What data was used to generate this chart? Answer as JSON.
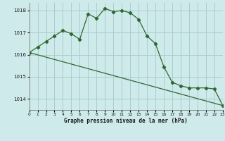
{
  "title": "Graphe pression niveau de la mer (hPa)",
  "bg_color": "#ceeaea",
  "grid_color": "#a8cece",
  "line_color": "#2d6a2d",
  "series1_x": [
    0,
    1,
    2,
    3,
    4,
    5,
    6,
    7,
    8,
    9,
    10,
    11,
    12,
    13,
    14,
    15,
    16,
    17,
    18,
    19,
    20,
    21,
    22,
    23
  ],
  "series1_y": [
    1016.1,
    1016.35,
    1016.6,
    1016.85,
    1017.1,
    1016.95,
    1016.7,
    1017.85,
    1017.65,
    1018.1,
    1017.95,
    1018.0,
    1017.9,
    1017.6,
    1016.85,
    1016.5,
    1015.45,
    1014.75,
    1014.6,
    1014.5,
    1014.5,
    1014.5,
    1014.45,
    1013.7
  ],
  "series2_x": [
    0,
    23
  ],
  "series2_y": [
    1016.1,
    1013.7
  ],
  "ylim": [
    1013.5,
    1018.35
  ],
  "yticks": [
    1014,
    1015,
    1016,
    1017,
    1018
  ],
  "xlim": [
    0,
    23
  ],
  "x_labels": [
    "0",
    "1",
    "2",
    "3",
    "4",
    "5",
    "6",
    "7",
    "8",
    "9",
    "10",
    "11",
    "12",
    "13",
    "14",
    "15",
    "16",
    "17",
    "18",
    "19",
    "20",
    "21",
    "22",
    "23"
  ]
}
